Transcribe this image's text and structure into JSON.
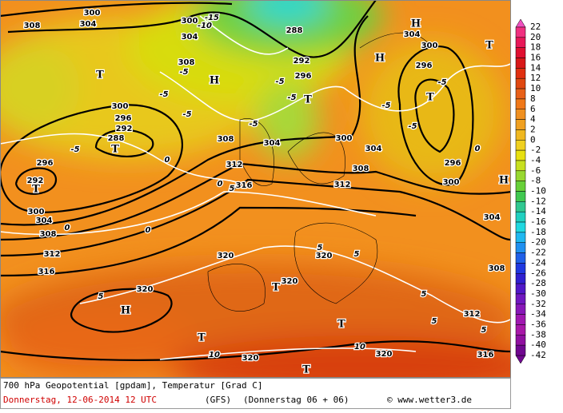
{
  "footer": {
    "title": "700 hPa Geopotential [gpdam], Temperatur [Grad C]",
    "date": "Donnerstag, 12-06-2014  12 UTC",
    "model": "(GFS)",
    "run": "(Donnerstag 06 + 06)",
    "source": "© www.wetter3.de"
  },
  "legend": {
    "ticks": [
      22,
      20,
      18,
      16,
      14,
      12,
      10,
      8,
      6,
      4,
      2,
      0,
      -2,
      -4,
      -6,
      -8,
      -10,
      -12,
      -14,
      -16,
      -18,
      -20,
      -22,
      -24,
      -26,
      -28,
      -30,
      -32,
      -34,
      -36,
      -38,
      -40,
      -42
    ],
    "colors": [
      "#f050c0",
      "#f03080",
      "#e81858",
      "#e01030",
      "#d81818",
      "#e03010",
      "#e04810",
      "#e86018",
      "#f07818",
      "#f09020",
      "#f0a020",
      "#f0b820",
      "#f0d020",
      "#e8e010",
      "#c8e020",
      "#98d830",
      "#68d038",
      "#40c850",
      "#30c890",
      "#20d0c0",
      "#20d8e0",
      "#20b8f0",
      "#2090f0",
      "#2060e8",
      "#2038e0",
      "#3020d0",
      "#5018c8",
      "#7018c0",
      "#8818b8",
      "#a018b0",
      "#a818a8",
      "#9010a0",
      "#700890"
    ]
  },
  "map": {
    "systems": [
      "H",
      "H",
      "T",
      "T",
      "H",
      "T",
      "H",
      "T",
      "T",
      "T",
      "H",
      "T",
      "T",
      "T",
      "T"
    ],
    "heights": [
      300,
      300,
      304,
      308,
      304,
      288,
      292,
      296,
      308,
      300,
      296,
      292,
      288,
      296,
      292,
      300,
      304,
      308,
      312,
      316,
      308,
      304,
      300,
      304,
      308,
      312,
      316,
      312,
      296,
      300,
      300,
      304,
      296,
      304,
      308,
      312,
      316,
      320,
      320,
      320,
      320,
      320,
      320
    ],
    "temperatures": [
      -15,
      -10,
      -5,
      -5,
      -5,
      -5,
      0,
      -5,
      -5,
      -5,
      -5,
      0,
      0,
      0,
      0,
      5,
      5,
      5,
      5,
      5,
      5,
      5,
      10,
      10,
      -5,
      -5
    ]
  }
}
